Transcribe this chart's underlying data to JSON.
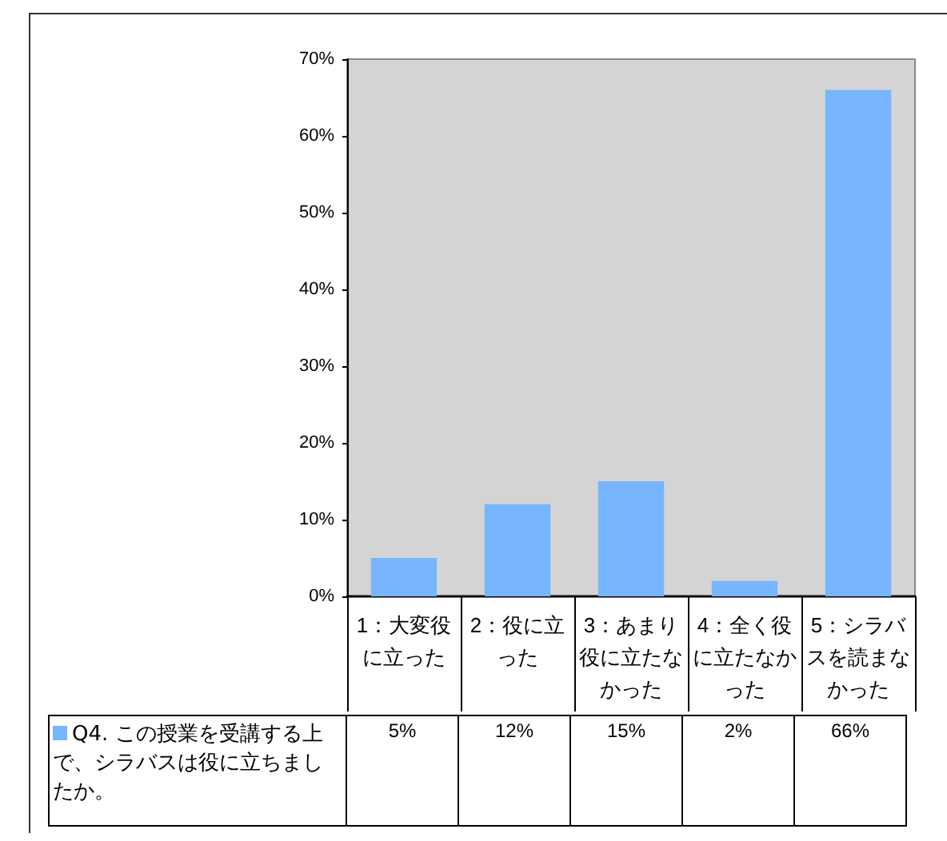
{
  "chart_data": {
    "type": "bar",
    "categories": [
      "1：大変役に立った",
      "2：役に立った",
      "3：あまり役に立たなかった",
      "4：全く役に立たなかった",
      "5：シラバスを読まなかった"
    ],
    "series": [
      {
        "name": "Q4. この授業を受講する上で、シラバスは役に立ちましたか。",
        "color": "#77b5fe",
        "values": [
          5,
          12,
          15,
          2,
          66
        ],
        "value_labels": [
          "5%",
          "12%",
          "15%",
          "2%",
          "66%"
        ]
      }
    ],
    "ylim": [
      0,
      70
    ],
    "yticks": [
      {
        "value": 0,
        "label": "0%"
      },
      {
        "value": 10,
        "label": "10%"
      },
      {
        "value": 20,
        "label": "20%"
      },
      {
        "value": 30,
        "label": "30%"
      },
      {
        "value": 40,
        "label": "40%"
      },
      {
        "value": 50,
        "label": "50%"
      },
      {
        "value": 60,
        "label": "60%"
      },
      {
        "value": 70,
        "label": "70%"
      }
    ],
    "grid": false,
    "legend": "bottom"
  }
}
